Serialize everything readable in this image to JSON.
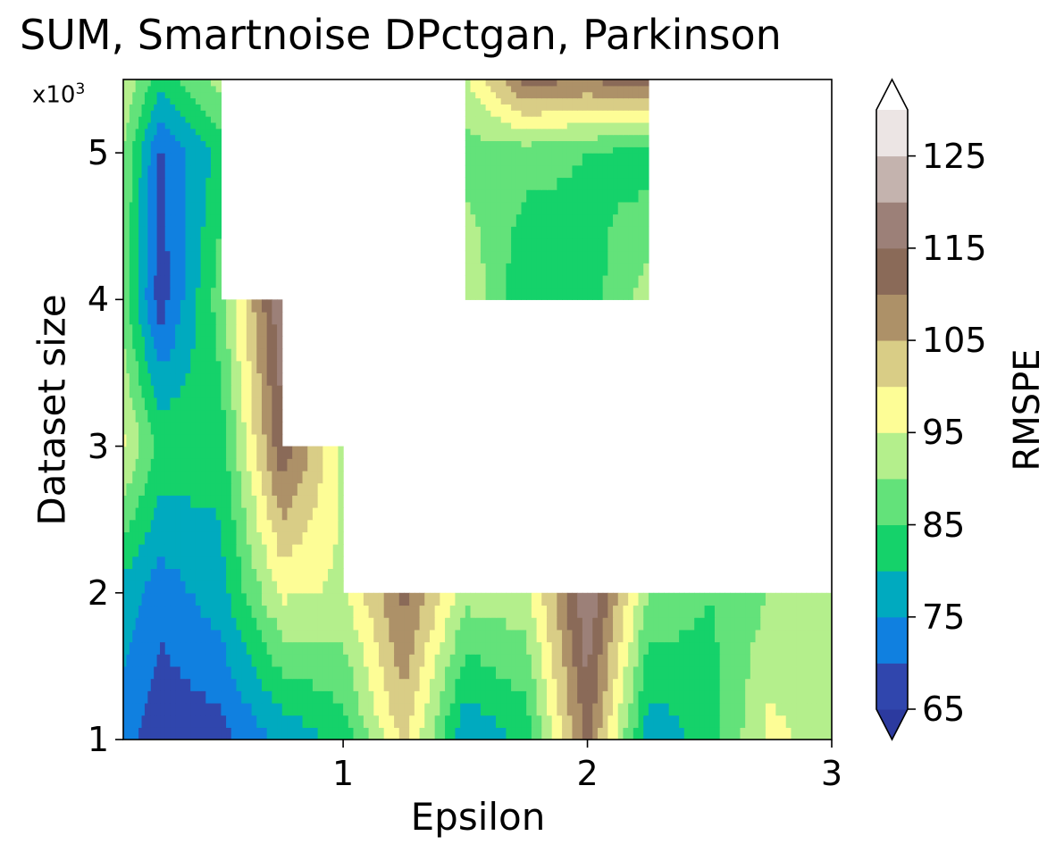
{
  "chart_data": {
    "type": "contourf",
    "title": "SUM, Smartnoise DPctgan, Parkinson",
    "xlabel": "Epsilon",
    "ylabel": "Dataset size",
    "y_scale_note": {
      "base": "x10",
      "exponent": "3"
    },
    "xlim": [
      0.1,
      3.0
    ],
    "ylim": [
      1,
      5.5
    ],
    "x_ticks": [
      "1",
      "2",
      "3"
    ],
    "y_ticks": [
      "1",
      "2",
      "3",
      "4",
      "5"
    ],
    "colorbar": {
      "label": "RMSPE",
      "levels": [
        65,
        70,
        75,
        80,
        85,
        90,
        95,
        100,
        105,
        110,
        115,
        120,
        125,
        130
      ],
      "tick_labels": [
        "65",
        "75",
        "85",
        "95",
        "105",
        "115",
        "125"
      ],
      "extend": "both",
      "colors": [
        "#2c3a9f",
        "#3046ad",
        "#1080e0",
        "#00aabf",
        "#15d26a",
        "#63e27a",
        "#b4ef8c",
        "#fdfd96",
        "#d9cd86",
        "#ad9168",
        "#8a6a58",
        "#9c8078",
        "#c4b3ae",
        "#ece5e4",
        "#ffffff"
      ]
    },
    "x": [
      0.1,
      0.25,
      0.5,
      0.75,
      1.0,
      1.25,
      1.5,
      1.75,
      2.0,
      2.25,
      2.5,
      2.75,
      3.0
    ],
    "y": [
      1,
      2,
      3,
      4,
      5,
      5.5
    ],
    "z": [
      [
        72,
        66,
        68,
        76,
        82,
        102,
        75,
        82,
        112,
        76,
        82,
        97,
        91
      ],
      [
        78,
        72,
        78,
        96,
        94,
        112,
        92,
        93,
        120,
        90,
        85,
        90,
        91
      ],
      [
        96,
        84,
        82,
        114,
        94,
        null,
        null,
        null,
        null,
        null,
        null,
        null,
        80
      ],
      [
        88,
        67,
        88,
        120,
        null,
        null,
        95,
        80,
        82,
        93,
        null,
        null,
        104
      ],
      [
        90,
        69,
        82,
        null,
        null,
        null,
        88,
        87,
        85,
        82,
        null,
        82,
        80
      ],
      [
        95,
        82,
        92,
        null,
        null,
        null,
        94,
        112,
        110,
        114,
        null,
        null,
        null
      ]
    ]
  }
}
